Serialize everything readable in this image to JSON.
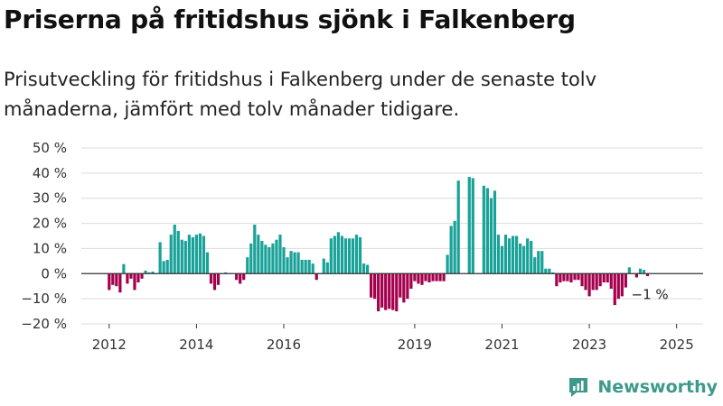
{
  "header": {
    "title": "Priserna på fritidshus sjönk i Falkenberg",
    "subtitle": "Prisutveckling för fritidshus i Falkenberg under de senaste tolv månaderna, jämfört med tolv månader tidigare."
  },
  "brand": {
    "name": "Newsworthy",
    "icon": "newsworthy-logo-icon",
    "color": "#3d9a8b"
  },
  "chart_data": {
    "type": "bar",
    "title": "",
    "xlabel": "",
    "ylabel": "",
    "ylim": [
      -20,
      50
    ],
    "yticks": [
      50,
      40,
      30,
      20,
      10,
      0,
      -10,
      -20
    ],
    "ytick_labels": [
      "50 %",
      "40 %",
      "30 %",
      "20 %",
      "10 %",
      "0 %",
      "−10 %",
      "−20 %"
    ],
    "xticks": [
      "2012",
      "2014",
      "2016",
      "2019",
      "2021",
      "2023",
      "2025"
    ],
    "grid": true,
    "colors": {
      "positive": "#19a298",
      "negative": "#a4004d",
      "zero_line": "#333333",
      "grid": "#dcdcdc"
    },
    "annotation": {
      "text": "−1 %",
      "at_last_value": true
    },
    "start": "2012-01",
    "values": [
      -6.5,
      -4.5,
      -5,
      -7.5,
      3.8,
      -4,
      -2,
      -6.5,
      -3.5,
      -2,
      1.2,
      0.5,
      0.8,
      0,
      12.5,
      5,
      5.5,
      15.5,
      19.5,
      17,
      13.5,
      13,
      15.5,
      14.5,
      15.5,
      16,
      15,
      8.5,
      -4,
      -6.5,
      -4.5,
      0,
      0.5,
      0,
      null,
      -2.5,
      -4,
      -2.5,
      6.5,
      12,
      19.5,
      15.5,
      13,
      11.5,
      10.5,
      12,
      13.5,
      15.5,
      10.5,
      6.5,
      9,
      8.5,
      8.5,
      5.5,
      5.5,
      5.5,
      4,
      -2.5,
      0,
      6,
      4.5,
      14,
      15,
      16.5,
      15,
      14,
      14,
      14,
      15.5,
      14.5,
      4,
      3.5,
      -9.5,
      -10,
      -15,
      -13.5,
      -14.5,
      -14,
      -14.5,
      -15,
      -9.5,
      -11.5,
      -10,
      -6,
      -3,
      -4,
      -4.5,
      -3,
      -3.5,
      -3,
      -3,
      -3,
      -3,
      7.5,
      19,
      21,
      37,
      null,
      null,
      38.5,
      38,
      null,
      null,
      35,
      34,
      30,
      33,
      15.5,
      11,
      15.5,
      14,
      15,
      15,
      12,
      11,
      14,
      13,
      6.5,
      9,
      9,
      2,
      2,
      0.5,
      -5,
      -3.5,
      -3,
      -3,
      -3.5,
      -2.5,
      -2.5,
      -5,
      -6.5,
      -9,
      -6.5,
      -6.5,
      -5,
      -3.5,
      -3.5,
      -6,
      -12.5,
      -10,
      -9,
      -5.5,
      2.5,
      0,
      -1.5,
      2,
      1.5,
      -1
    ]
  }
}
